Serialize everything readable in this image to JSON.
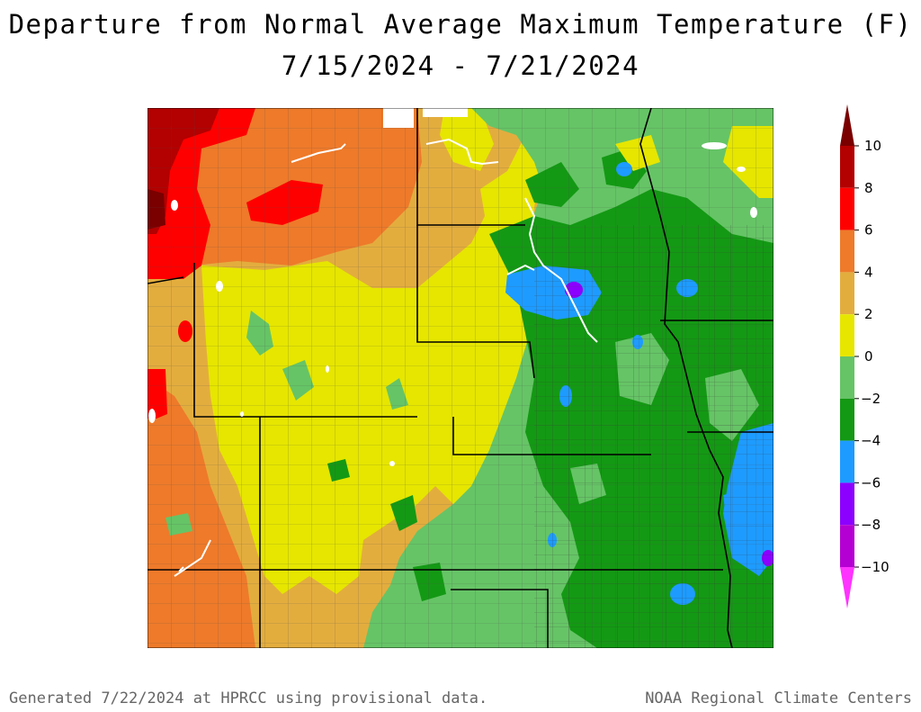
{
  "title": {
    "line1": "Departure from Normal Average Maximum Temperature (F)",
    "line2": "7/15/2024 - 7/21/2024"
  },
  "legend": {
    "bins": [
      {
        "min": 10,
        "max": null,
        "color": "#7a0000"
      },
      {
        "min": 8,
        "max": 10,
        "color": "#b30000"
      },
      {
        "min": 6,
        "max": 8,
        "color": "#ff0000"
      },
      {
        "min": 4,
        "max": 6,
        "color": "#ee7a2a"
      },
      {
        "min": 2,
        "max": 4,
        "color": "#e3ad3e"
      },
      {
        "min": 0,
        "max": 2,
        "color": "#e6e600"
      },
      {
        "min": -2,
        "max": 0,
        "color": "#66c466"
      },
      {
        "min": -4,
        "max": -2,
        "color": "#149914"
      },
      {
        "min": -6,
        "max": -4,
        "color": "#1e9bff"
      },
      {
        "min": -8,
        "max": -6,
        "color": "#8c00ff"
      },
      {
        "min": -10,
        "max": -8,
        "color": "#b400d2"
      },
      {
        "min": null,
        "max": -10,
        "color": "#ff33ff"
      }
    ],
    "tick_labels": [
      "10",
      "8",
      "6",
      "4",
      "2",
      "0",
      "−2",
      "−4",
      "−6",
      "−8",
      "−10"
    ]
  },
  "footer": {
    "left": "Generated 7/22/2024 at HPRCC using provisional data.",
    "right": "NOAA Regional Climate Centers"
  },
  "map": {
    "background_color": "#e3ad3e",
    "boundary_color": "#000000",
    "water_color": "#ffffff"
  }
}
